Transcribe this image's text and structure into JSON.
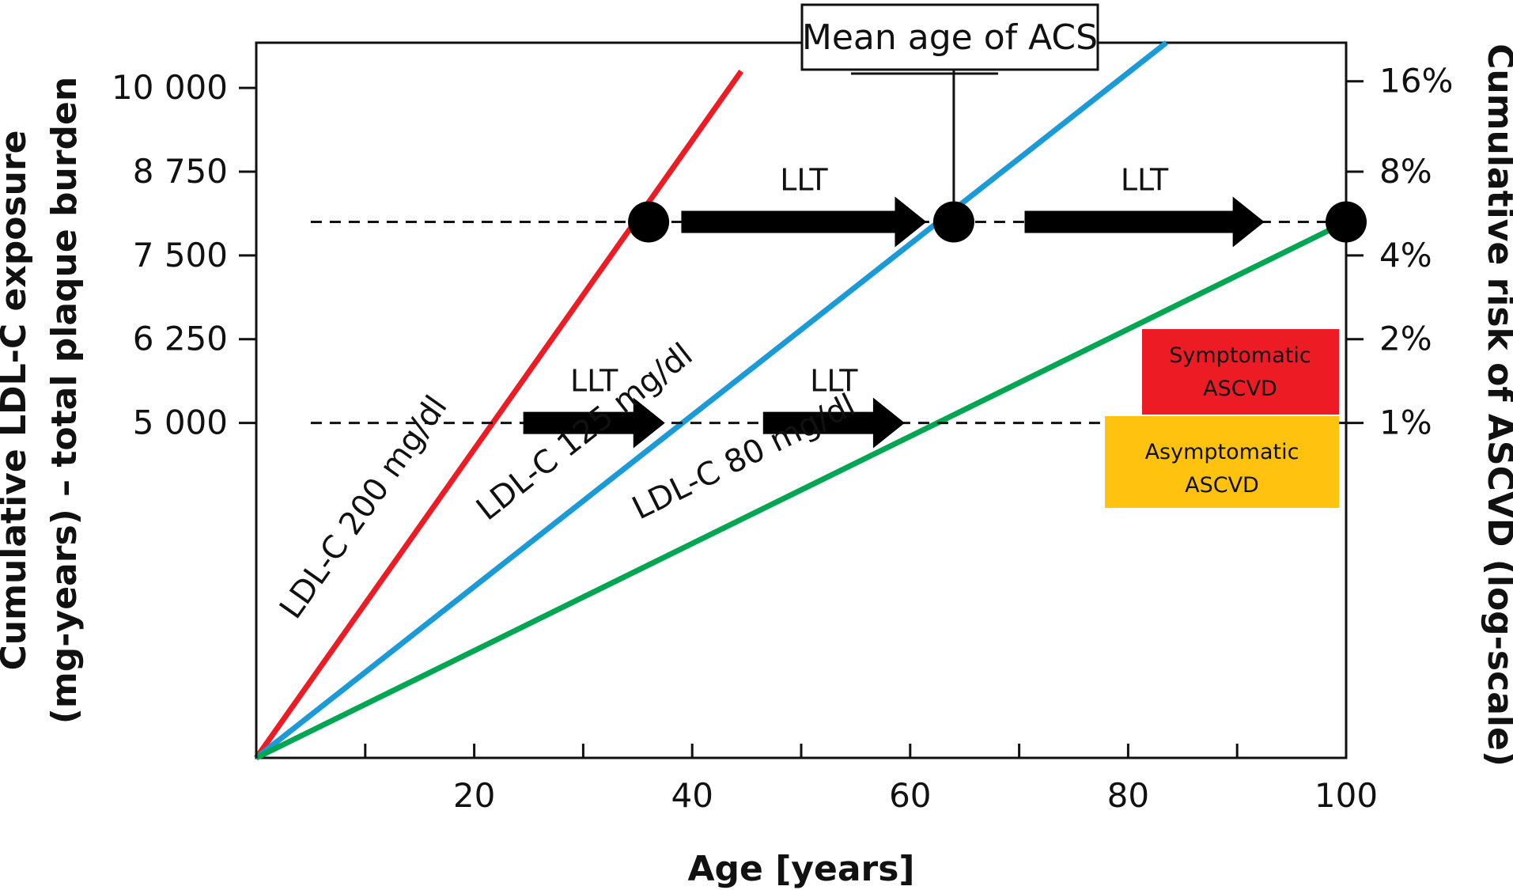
{
  "chart_data": {
    "type": "line",
    "xlabel": "Age [years]",
    "ylabel": "Cumulative LDL-C exposure (mg-years) – total plaque burden",
    "ylabel_lines": [
      "Cumulative LDL-C exposure",
      "(mg-years) – total plaque burden"
    ],
    "y2label": "Cumulative risk of ASCVD (log-scale)",
    "xlim": [
      0,
      100
    ],
    "ylim": [
      0,
      10675
    ],
    "x_ticks": [
      0,
      10,
      20,
      30,
      40,
      50,
      60,
      70,
      80,
      90,
      100
    ],
    "x_tick_labels": [
      "",
      "",
      "20",
      "",
      "40",
      "",
      "60",
      "",
      "80",
      "",
      "100"
    ],
    "y_ticks": [
      5000,
      6250,
      7500,
      8750,
      10000
    ],
    "y_tick_labels": [
      "5 000",
      "6 250",
      "7 500",
      "8 750",
      "10 000"
    ],
    "y2_scale": "log",
    "y2_ticks_at_y": [
      5000,
      6250,
      7500,
      8750,
      10100
    ],
    "y2_tick_labels": [
      "1%",
      "2%",
      "4%",
      "8%",
      "16%"
    ],
    "series": [
      {
        "name": "LDL-C 200 mg/dl",
        "color": "#ed1c24",
        "x": [
          0,
          44.5
        ],
        "y": [
          0,
          10250
        ]
      },
      {
        "name": "LDL-C 125 mg/dl",
        "color": "#1a9ad6",
        "x": [
          0,
          83.5
        ],
        "y": [
          0,
          10675
        ]
      },
      {
        "name": "LDL-C 80 mg/dl",
        "color": "#00a651",
        "x": [
          0,
          100
        ],
        "y": [
          0,
          8000
        ]
      }
    ],
    "thresholds": [
      {
        "y": 8000,
        "x_range": [
          5,
          100
        ],
        "style": "dashed"
      },
      {
        "y": 5000,
        "x_range": [
          5,
          100
        ],
        "style": "dashed"
      }
    ],
    "markers": [
      {
        "x": 36,
        "y": 8000
      },
      {
        "x": 64,
        "y": 8000
      },
      {
        "x": 100,
        "y": 8000
      }
    ],
    "arrows": [
      {
        "label": "LLT",
        "x_from": 39,
        "x_to": 61.5,
        "y": 8000
      },
      {
        "label": "LLT",
        "x_from": 70.5,
        "x_to": 92.5,
        "y": 8000
      },
      {
        "label": "LLT",
        "x_from": 24.5,
        "x_to": 37.5,
        "y": 5000
      },
      {
        "label": "LLT",
        "x_from": 46.5,
        "x_to": 59.5,
        "y": 5000
      }
    ],
    "annotations": [
      {
        "text": "Mean age of ACS",
        "x": 64
      },
      {
        "text": "Symptomatic ASCVD",
        "color": "#ed1c24",
        "lines": [
          "Symptomatic",
          "ASCVD"
        ]
      },
      {
        "text": "Asymptomatic ASCVD",
        "color": "#ffc20e",
        "lines": [
          "Asymptomatic",
          "ASCVD"
        ]
      }
    ],
    "grid": false
  }
}
